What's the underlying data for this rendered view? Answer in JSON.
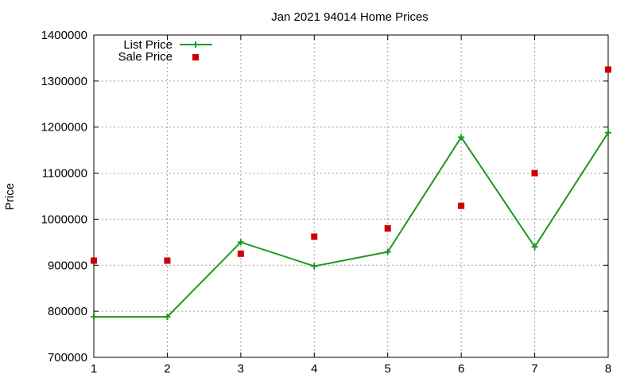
{
  "chart_data": {
    "type": "line",
    "title": "Jan 2021 94014 Home Prices",
    "xlabel": "",
    "ylabel": "Price",
    "x": [
      1,
      2,
      3,
      4,
      5,
      6,
      7,
      8
    ],
    "xlim": [
      1,
      8
    ],
    "ylim": [
      700000,
      1400000
    ],
    "x_ticks": [
      "1",
      "2",
      "3",
      "4",
      "5",
      "6",
      "7",
      "8"
    ],
    "y_ticks": [
      "700000",
      "800000",
      "900000",
      "1000000",
      "1100000",
      "1200000",
      "1300000",
      "1400000"
    ],
    "grid": true,
    "legend_position": "top-left",
    "series": [
      {
        "name": "List Price",
        "style": "line with plus markers",
        "color": "#1a9a1a",
        "values": [
          788000,
          788000,
          950000,
          898000,
          929000,
          1178000,
          940000,
          1188000
        ]
      },
      {
        "name": "Sale Price",
        "style": "square markers",
        "color": "#cc0000",
        "values": [
          910000,
          910000,
          925000,
          962000,
          980000,
          1029000,
          1100000,
          1325000
        ]
      }
    ]
  }
}
